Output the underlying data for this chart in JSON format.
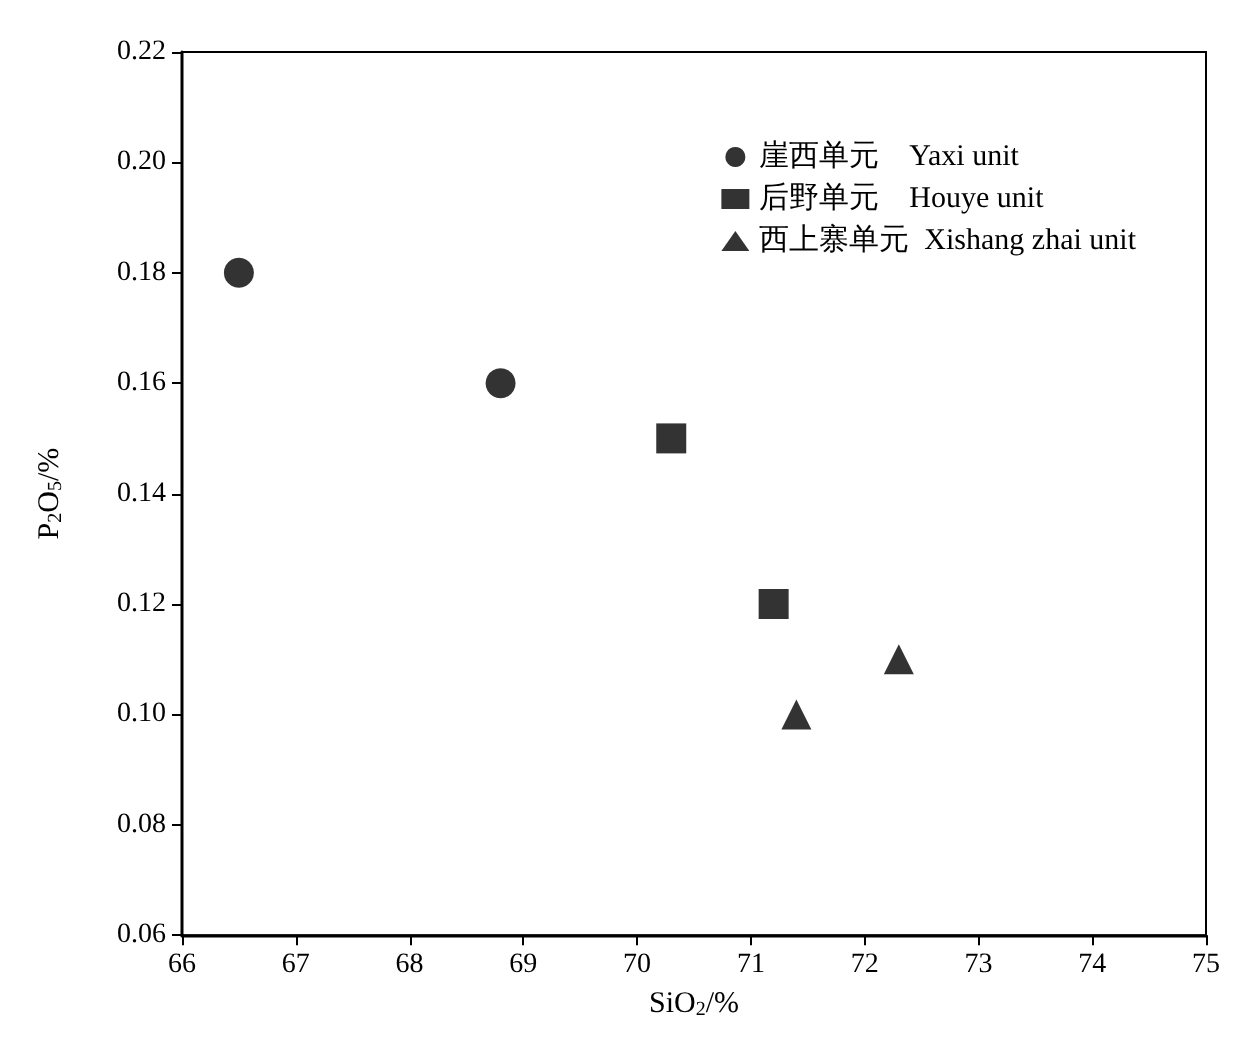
{
  "chart_data": {
    "type": "scatter",
    "xlabel": "SiO$_{2}$/%",
    "ylabel": "P$_{2}$O$_{5}$/%",
    "xlim": [
      66,
      75
    ],
    "xticks": [
      66,
      67,
      68,
      69,
      70,
      71,
      72,
      73,
      74,
      75
    ],
    "ylim": [
      0.06,
      0.22
    ],
    "yticks": [
      0.06,
      0.08,
      {
        "value": 0.1,
        "label": "0.10"
      },
      0.12,
      0.14,
      0.16,
      0.18,
      {
        "value": 0.2,
        "label": "0.20"
      },
      0.22
    ],
    "grid": false,
    "legend": "top right",
    "series": [
      {
        "name": "崖西单元    Yaxi unit",
        "color": "#000000",
        "marker": "circle",
        "x": [
          66.5,
          68.8
        ],
        "values": [
          0.18,
          0.16
        ]
      },
      {
        "name": "后野单元    Houye unit",
        "color": "#000000",
        "marker": "square",
        "x": [
          70.3,
          71.2
        ],
        "values": [
          0.15,
          0.12
        ]
      },
      {
        "name": "西上寨单元  Xishang zhai unit",
        "color": "#000000",
        "marker": "triangle",
        "x": [
          71.4,
          72.3
        ],
        "values": [
          0.1,
          0.11
        ]
      }
    ]
  }
}
